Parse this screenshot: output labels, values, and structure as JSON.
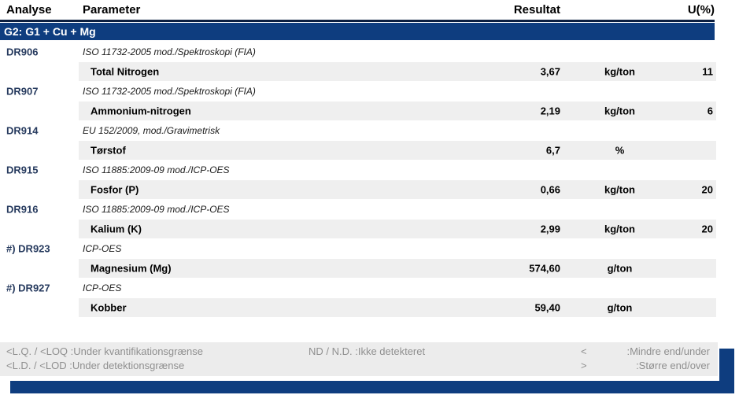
{
  "header": {
    "analyse": "Analyse",
    "parameter": "Parameter",
    "resultat": "Resultat",
    "u": "U(%)"
  },
  "group_banner": "G2: G1 + Cu + Mg",
  "rows": [
    {
      "code": "DR906",
      "method": "ISO 11732-2005 mod./Spektroskopi (FIA)",
      "parameter": "Total Nitrogen",
      "result": "3,67",
      "unit": "kg/ton",
      "u": "11"
    },
    {
      "code": "DR907",
      "method": "ISO 11732-2005 mod./Spektroskopi (FIA)",
      "parameter": "Ammonium-nitrogen",
      "result": "2,19",
      "unit": "kg/ton",
      "u": "6"
    },
    {
      "code": "DR914",
      "method": "EU 152/2009, mod./Gravimetrisk",
      "parameter": "Tørstof",
      "result": "6,7",
      "unit": "%",
      "u": ""
    },
    {
      "code": "DR915",
      "method": "ISO 11885:2009-09 mod./ICP-OES",
      "parameter": "Fosfor (P)",
      "result": "0,66",
      "unit": "kg/ton",
      "u": "20"
    },
    {
      "code": "DR916",
      "method": "ISO 11885:2009-09 mod./ICP-OES",
      "parameter": "Kalium (K)",
      "result": "2,99",
      "unit": "kg/ton",
      "u": "20"
    },
    {
      "code": "#) DR923",
      "method": "ICP-OES",
      "parameter": "Magnesium (Mg)",
      "result": "574,60",
      "unit": "g/ton",
      "u": ""
    },
    {
      "code": "#) DR927",
      "method": "ICP-OES",
      "parameter": "Kobber",
      "result": "59,40",
      "unit": "g/ton",
      "u": ""
    }
  ],
  "legend": {
    "line1": {
      "left": "<L.Q. / <LOQ :Under kvantifikationsgrænse",
      "mid": "ND / N.D. :Ikke detekteret",
      "symbol": "<",
      "right": ":Mindre end/under"
    },
    "line2": {
      "left": "<L.D. / <LOD :Under detektionsgrænse",
      "mid": "",
      "symbol": ">",
      "right": ":Større end/over"
    }
  },
  "colors": {
    "accent_navy": "#0e3d7f",
    "header_rule": "#0c1f40",
    "row_band_gray": "#efefef",
    "legend_gray": "#ececec",
    "legend_text": "#8f8f8f",
    "code_text": "#263a5e"
  }
}
